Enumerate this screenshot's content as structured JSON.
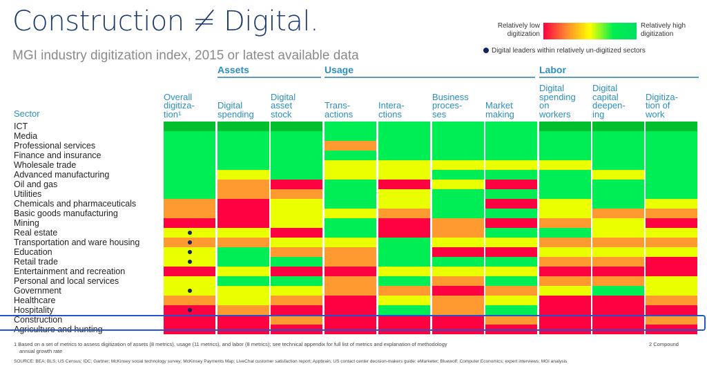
{
  "header": {
    "title": "Construction ≠ Digital.",
    "subtitle": "MGI industry digitization index, 2015 or latest available data"
  },
  "legend": {
    "low_label": "Relatively low digitization",
    "high_label": "Relatively high digitization",
    "dot_label": "Digital leaders within relatively un-digitized sectors",
    "colors": {
      "D": "#00c030",
      "G": "#00ee55",
      "Y": "#eaff00",
      "O": "#ff9a30",
      "R": "#ff0040"
    },
    "dot_color": "#13255a"
  },
  "chart_data": {
    "type": "heatmap",
    "title": "Construction ≠ Digital.",
    "subtitle": "MGI industry digitization index, 2015 or latest available data",
    "row_header": "Sector",
    "scale": "D = highest (dark green), G = high (green), Y = medium (yellow), O = low (orange), R = lowest (red)",
    "groups": [
      {
        "name": "Assets",
        "columns": [
          "Digital spending",
          "Digital asset stock"
        ]
      },
      {
        "name": "Usage",
        "columns": [
          "Transactions",
          "Interactions",
          "Business processes",
          "Market making"
        ]
      },
      {
        "name": "Labor",
        "columns": [
          "Digital spending on workers",
          "Digital capital deepening",
          "Digitization of work"
        ]
      }
    ],
    "columns": [
      {
        "key": "overall",
        "label": "Overall\ndigitiza-\ntion¹"
      },
      {
        "key": "dspend",
        "label": "Digital\nspending"
      },
      {
        "key": "dasset",
        "label": "Digital\nasset\nstock"
      },
      {
        "key": "trans",
        "label": "Trans-\nactions"
      },
      {
        "key": "inter",
        "label": "Intera-\nctions"
      },
      {
        "key": "bproc",
        "label": "Business\nproces-\nses"
      },
      {
        "key": "market",
        "label": "Market\nmaking"
      },
      {
        "key": "dsw",
        "label": "Digital\nspending\non\nworkers"
      },
      {
        "key": "dcd",
        "label": "Digital\ncapital\ndeepen-\ning"
      },
      {
        "key": "dow",
        "label": "Digitiza-\ntion of\nwork"
      }
    ],
    "rows": [
      {
        "sector": "ICT",
        "values": [
          "D",
          "D",
          "D",
          "G",
          "G",
          "G",
          "G",
          "D",
          "D",
          "D"
        ],
        "leader": false
      },
      {
        "sector": "Media",
        "values": [
          "G",
          "G",
          "G",
          "G",
          "G",
          "G",
          "G",
          "G",
          "G",
          "G"
        ],
        "leader": false
      },
      {
        "sector": "Professional services",
        "values": [
          "G",
          "G",
          "G",
          "O",
          "G",
          "G",
          "G",
          "G",
          "G",
          "G"
        ],
        "leader": false
      },
      {
        "sector": "Finance and insurance",
        "values": [
          "G",
          "G",
          "G",
          "G",
          "G",
          "G",
          "G",
          "G",
          "G",
          "G"
        ],
        "leader": false
      },
      {
        "sector": "Wholesale trade",
        "values": [
          "G",
          "G",
          "G",
          "Y",
          "Y",
          "Y",
          "Y",
          "Y",
          "G",
          "G"
        ],
        "leader": false
      },
      {
        "sector": "Advanced manufacturing",
        "values": [
          "G",
          "Y",
          "G",
          "Y",
          "Y",
          "G",
          "G",
          "G",
          "Y",
          "G"
        ],
        "leader": false
      },
      {
        "sector": "Oil and gas",
        "values": [
          "G",
          "O",
          "R",
          "G",
          "R",
          "Y",
          "R",
          "G",
          "G",
          "G"
        ],
        "leader": false
      },
      {
        "sector": "Utilities",
        "values": [
          "G",
          "O",
          "O",
          "G",
          "Y",
          "G",
          "G",
          "G",
          "G",
          "G"
        ],
        "leader": false
      },
      {
        "sector": "Chemicals and pharmaceuticals",
        "values": [
          "O",
          "R",
          "Y",
          "G",
          "Y",
          "G",
          "R",
          "Y",
          "G",
          "Y"
        ],
        "leader": false
      },
      {
        "sector": "Basic goods manufacturing",
        "values": [
          "O",
          "R",
          "Y",
          "Y",
          "O",
          "G",
          "G",
          "Y",
          "O",
          "O"
        ],
        "leader": false
      },
      {
        "sector": "Mining",
        "values": [
          "R",
          "R",
          "Y",
          "G",
          "R",
          "O",
          "R",
          "O",
          "Y",
          "R"
        ],
        "leader": false
      },
      {
        "sector": "Real estate",
        "values": [
          "Y",
          "Y",
          "R",
          "G",
          "R",
          "O",
          "G",
          "G",
          "Y",
          "Y"
        ],
        "leader": true
      },
      {
        "sector": "Transportation and ware housing",
        "values": [
          "O",
          "O",
          "Y",
          "Y",
          "G",
          "Y",
          "Y",
          "O",
          "O",
          "O"
        ],
        "leader": true
      },
      {
        "sector": "Education",
        "values": [
          "Y",
          "G",
          "O",
          "O",
          "G",
          "R",
          "R",
          "Y",
          "Y",
          "Y"
        ],
        "leader": true
      },
      {
        "sector": "Retail trade",
        "values": [
          "Y",
          "G",
          "G",
          "O",
          "G",
          "G",
          "G",
          "O",
          "O",
          "R"
        ],
        "leader": true
      },
      {
        "sector": "Entertainment and recreation",
        "values": [
          "R",
          "Y",
          "R",
          "R",
          "Y",
          "Y",
          "Y",
          "R",
          "R",
          "R"
        ],
        "leader": false
      },
      {
        "sector": "Personal and local services",
        "values": [
          "Y",
          "G",
          "G",
          "O",
          "G",
          "O",
          "G",
          "O",
          "O",
          "Y"
        ],
        "leader": false
      },
      {
        "sector": "Government",
        "values": [
          "Y",
          "Y",
          "Y",
          "O",
          "O",
          "R",
          "O",
          "Y",
          "G",
          "Y"
        ],
        "leader": true
      },
      {
        "sector": "Healthcare",
        "values": [
          "O",
          "Y",
          "O",
          "R",
          "Y",
          "O",
          "Y",
          "R",
          "R",
          "O"
        ],
        "leader": false
      },
      {
        "sector": "Hospitality",
        "values": [
          "R",
          "O",
          "R",
          "R",
          "G",
          "O",
          "G",
          "R",
          "R",
          "R"
        ],
        "leader": true
      },
      {
        "sector": "Construction",
        "values": [
          "R",
          "R",
          "O",
          "R",
          "R",
          "R",
          "O",
          "R",
          "R",
          "O"
        ],
        "leader": false
      },
      {
        "sector": "Agriculture and hunting",
        "values": [
          "R",
          "R",
          "R",
          "R",
          "R",
          "R",
          "R",
          "R",
          "R",
          "R"
        ],
        "leader": false
      }
    ],
    "highlighted_row": "Construction"
  },
  "footnotes": {
    "note1": "1 Based on a set of metrics to assess digitization of assets (8 metrics), usage (11 metrics), and labor (8 metrics); see technical appendix for full list of metrics and explanation of methodology",
    "note1_cont": "annual growth rate",
    "note2": "2 Compound",
    "source": "SOURCE: BEA; BLS; US Census; IDC; Gartner; McKinsey social technology survey; McKinsey Payments Map; LiveChat customer satisfaction report; Appbrain; US contact center decision-makers guide; eMarketer; Bluewolf; Computer Economics; expert interviews; MGI analysis"
  }
}
